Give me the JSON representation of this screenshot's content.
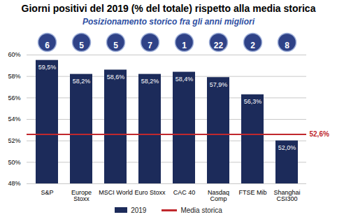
{
  "chart_data": {
    "type": "bar",
    "title": "Giorni positivi del 2019 (% del totale) rispetto alla media storica",
    "subtitle": "Posizionamento storico fra gli anni migliori",
    "categories": [
      "S&P",
      "Europe Stoxx",
      "MSCI World",
      "Euro Stoxx",
      "CAC 40",
      "Nasdaq Comp",
      "FTSE Mib",
      "Shanghai CSI300"
    ],
    "series": [
      {
        "name": "2019",
        "color": "#1c2b5a",
        "values": [
          59.5,
          58.2,
          58.6,
          58.2,
          58.4,
          57.9,
          56.3,
          52.0
        ],
        "value_labels": [
          "59,5%",
          "58,2%",
          "58,6%",
          "58,2%",
          "58,4%",
          "57,9%",
          "56,3%",
          "52,0%"
        ]
      }
    ],
    "average": {
      "name": "Media storica",
      "color": "#c0282d",
      "value": 52.6,
      "value_label": "52,6%"
    },
    "ranks": [
      6,
      5,
      5,
      7,
      1,
      22,
      2,
      8
    ],
    "ylim": [
      48,
      60
    ],
    "yticks": [
      {
        "value": 48,
        "label": "48%"
      },
      {
        "value": 50,
        "label": "50%"
      },
      {
        "value": 52,
        "label": "52%"
      },
      {
        "value": 54,
        "label": "54%"
      },
      {
        "value": 56,
        "label": "56%"
      },
      {
        "value": 58,
        "label": "58%"
      },
      {
        "value": 60,
        "label": "60%"
      }
    ],
    "grid": true,
    "data_labels": true,
    "legend": "bottom"
  }
}
